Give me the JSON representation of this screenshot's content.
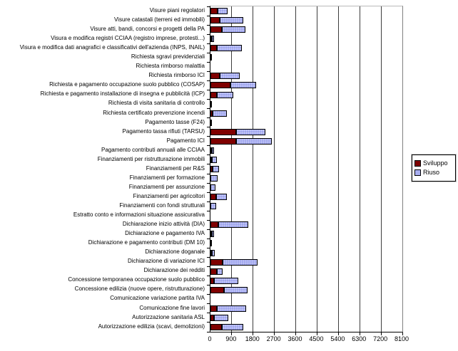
{
  "chart_data": {
    "type": "bar",
    "orientation": "horizontal-stacked",
    "title": "",
    "xlabel": "",
    "ylabel": "",
    "xlim": [
      0,
      8100
    ],
    "xticks": [
      0,
      900,
      1800,
      2700,
      3600,
      4500,
      5400,
      6300,
      7200,
      8100
    ],
    "grid": true,
    "legend_position": "right",
    "categories": [
      "Visure piani regolatori",
      "Visure catastali (terreni ed immobili)",
      "Visure atti, bandi, concorsi e progetti della PA",
      "Visura e modifica registri CCIAA (registro imprese, protesti...)",
      "Visura e modifica dati anagrafici e classificativi dell'azienda (INPS, INAIL)",
      "Richiesta sgravi previdenziali",
      "Richiesta rimborso malattia",
      "Richiesta rimborso ICI",
      "Richiesta e pagamento occupazione suolo pubblico (COSAP)",
      "Richiesta e pagamento installazione di insegna e pubblicità (ICP)",
      "Richiesta di visita sanitaria di controllo",
      "Richiesta certificato prevenzione incendi",
      "Pagamento tasse (F24)",
      "Pagamento tassa rifiuti (TARSU)",
      "Pagamento ICI",
      "Pagamento contributi annuali alle CCIAA",
      "Finanziamenti per ristrutturazione immobili",
      "Finanziamenti per R&S",
      "Finanziamenti per formazione",
      "Finanziamenti per assunzione",
      "Finanziamenti per agricoltori",
      "Finanziamenti con fondi strutturali",
      "Estratto conto e informazioni situazione assicurativa",
      "Dichiarazione inizio attività (DIA)",
      "Dichiarazione e pagamento IVA",
      "Dichiarazione e pagamento contributi (DM 10)",
      "Dichiarazione doganale",
      "Dichiarazione di variazione ICI",
      "Dichiarazione dei redditi",
      "Concessione temporanea occupazione suolo pubblico",
      "Concessione edilizia (nuove opere, ristrutturazione)",
      "Comunicazione variazione partita IVA",
      "Comunicazione fine lavori",
      "Autorizzazione sanitaria ASL",
      "Autorizzazione edilizia (scavi, demolizioni)"
    ],
    "series": [
      {
        "name": "Sviluppo",
        "color": "#7f0000",
        "values": [
          300,
          400,
          470,
          70,
          280,
          0,
          0,
          400,
          830,
          280,
          0,
          90,
          70,
          1080,
          1080,
          60,
          50,
          90,
          0,
          0,
          240,
          0,
          0,
          340,
          60,
          40,
          70,
          500,
          270,
          140,
          570,
          0,
          260,
          160,
          490
        ]
      },
      {
        "name": "Riuso",
        "color": "#a8aef0",
        "values": [
          430,
          1000,
          1020,
          70,
          1040,
          60,
          0,
          830,
          1090,
          670,
          60,
          610,
          0,
          1250,
          1520,
          100,
          200,
          275,
          300,
          210,
          460,
          240,
          0,
          1250,
          90,
          0,
          110,
          1490,
          240,
          1040,
          985,
          0,
          1240,
          580,
          895
        ]
      }
    ]
  },
  "legend": {
    "sviluppo_label": "Sviluppo",
    "riuso_label": "Riuso"
  }
}
